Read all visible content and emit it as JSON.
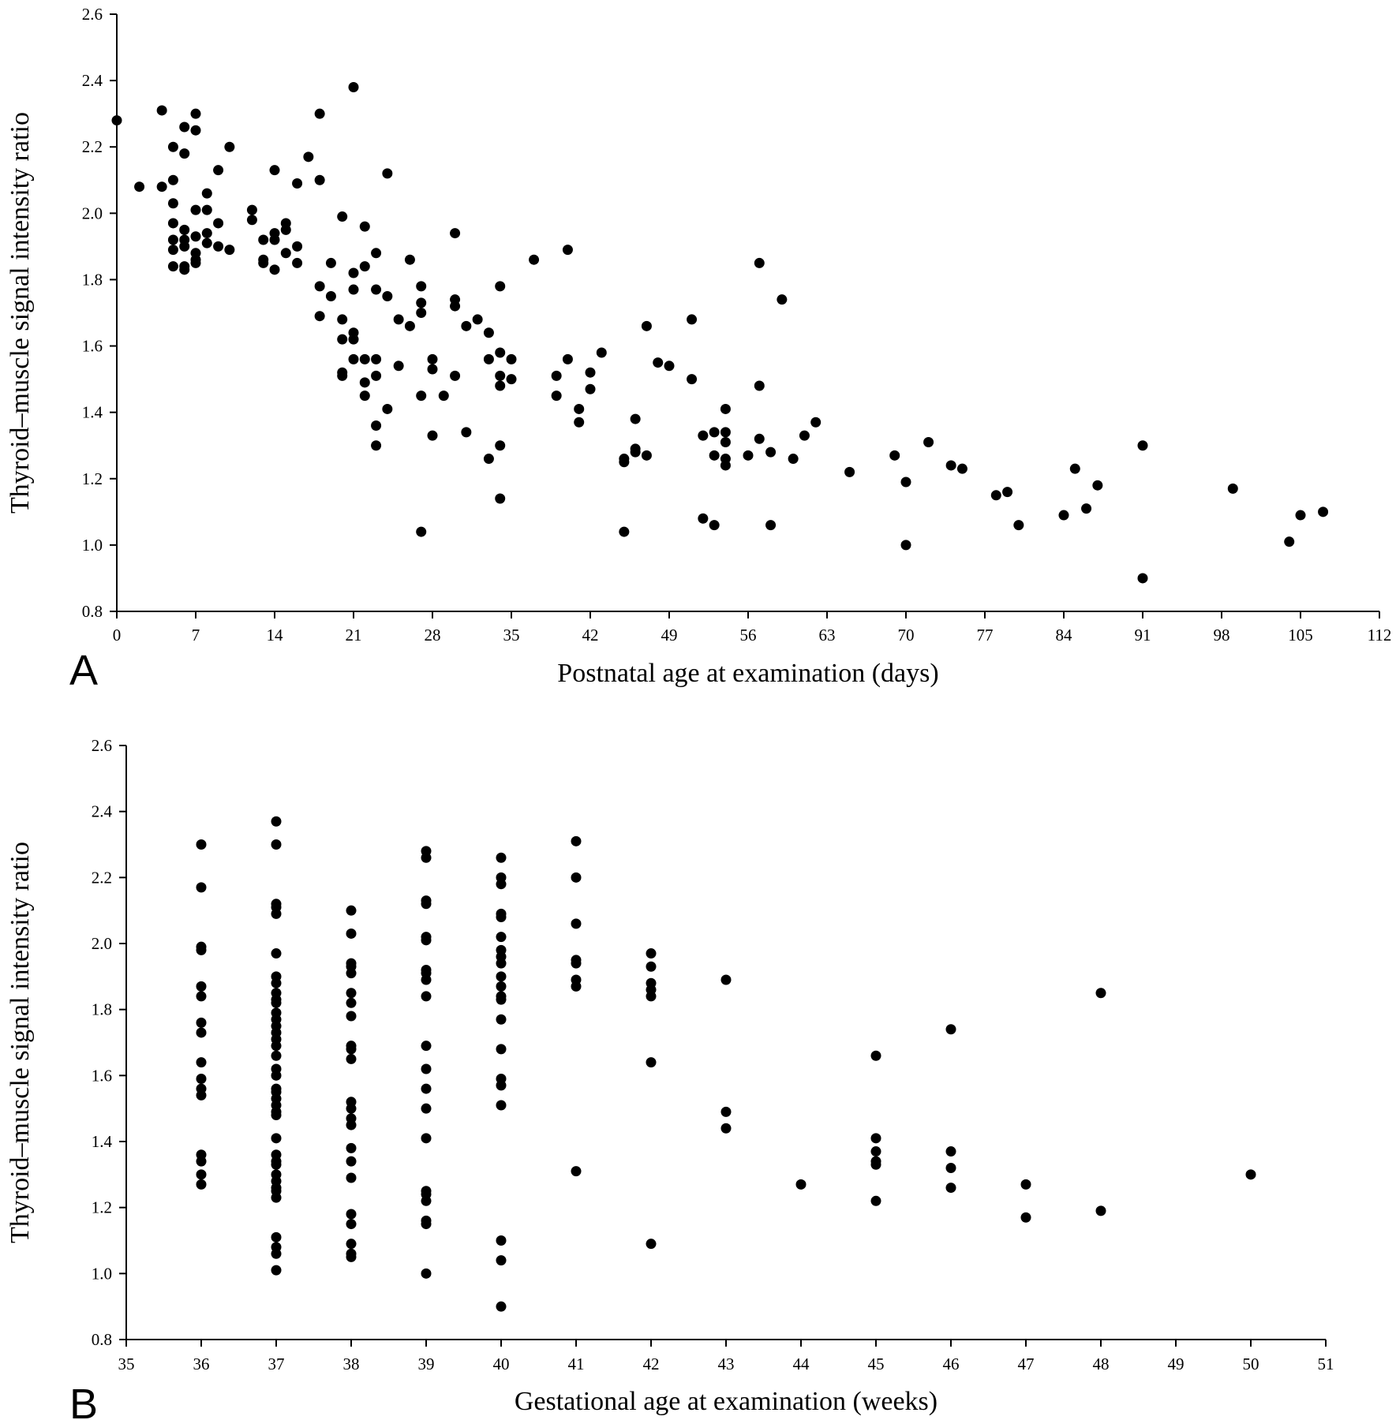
{
  "chart_data": [
    {
      "type": "scatter",
      "panel_label": "A",
      "xlabel": "Postnatal age at examination (days)",
      "ylabel": "Thyroid–muscle signal intensity ratio",
      "xlim": [
        0,
        112
      ],
      "ylim": [
        0.8,
        2.6
      ],
      "x_ticks": [
        0,
        7,
        14,
        21,
        28,
        35,
        42,
        49,
        56,
        63,
        70,
        77,
        84,
        91,
        98,
        105,
        112
      ],
      "y_ticks": [
        "0.8",
        "1.0",
        "1.2",
        "1.4",
        "1.6",
        "1.8",
        "2.0",
        "2.2",
        "2.4",
        "2.6"
      ],
      "grid": false,
      "points": [
        [
          0,
          2.28
        ],
        [
          2,
          2.08
        ],
        [
          4,
          2.31
        ],
        [
          4,
          2.08
        ],
        [
          5,
          2.2
        ],
        [
          5,
          2.1
        ],
        [
          5,
          2.03
        ],
        [
          5,
          1.97
        ],
        [
          5,
          1.92
        ],
        [
          5,
          1.89
        ],
        [
          5,
          1.84
        ],
        [
          6,
          2.26
        ],
        [
          6,
          2.18
        ],
        [
          6,
          1.95
        ],
        [
          6,
          1.92
        ],
        [
          6,
          1.9
        ],
        [
          6,
          1.84
        ],
        [
          6,
          1.83
        ],
        [
          7,
          2.3
        ],
        [
          7,
          2.25
        ],
        [
          7,
          2.01
        ],
        [
          7,
          1.93
        ],
        [
          7,
          1.88
        ],
        [
          7,
          1.86
        ],
        [
          7,
          1.85
        ],
        [
          8,
          2.06
        ],
        [
          8,
          2.01
        ],
        [
          8,
          1.94
        ],
        [
          8,
          1.91
        ],
        [
          9,
          2.13
        ],
        [
          9,
          1.97
        ],
        [
          9,
          1.9
        ],
        [
          10,
          2.2
        ],
        [
          10,
          1.89
        ],
        [
          12,
          2.01
        ],
        [
          12,
          1.98
        ],
        [
          13,
          1.92
        ],
        [
          13,
          1.86
        ],
        [
          13,
          1.85
        ],
        [
          14,
          2.13
        ],
        [
          14,
          1.94
        ],
        [
          14,
          1.92
        ],
        [
          14,
          1.83
        ],
        [
          15,
          1.97
        ],
        [
          15,
          1.95
        ],
        [
          15,
          1.88
        ],
        [
          16,
          2.09
        ],
        [
          16,
          1.9
        ],
        [
          16,
          1.85
        ],
        [
          17,
          2.17
        ],
        [
          18,
          2.3
        ],
        [
          18,
          2.1
        ],
        [
          18,
          1.78
        ],
        [
          18,
          1.69
        ],
        [
          19,
          1.85
        ],
        [
          19,
          1.75
        ],
        [
          20,
          1.99
        ],
        [
          20,
          1.68
        ],
        [
          20,
          1.62
        ],
        [
          20,
          1.51
        ],
        [
          20,
          1.52
        ],
        [
          21,
          2.38
        ],
        [
          21,
          1.82
        ],
        [
          21,
          1.77
        ],
        [
          21,
          1.64
        ],
        [
          21,
          1.62
        ],
        [
          21,
          1.56
        ],
        [
          22,
          1.96
        ],
        [
          22,
          1.84
        ],
        [
          22,
          1.56
        ],
        [
          22,
          1.49
        ],
        [
          22,
          1.45
        ],
        [
          23,
          1.88
        ],
        [
          23,
          1.77
        ],
        [
          23,
          1.56
        ],
        [
          23,
          1.51
        ],
        [
          23,
          1.36
        ],
        [
          23,
          1.3
        ],
        [
          24,
          2.12
        ],
        [
          24,
          1.75
        ],
        [
          24,
          1.41
        ],
        [
          25,
          1.68
        ],
        [
          25,
          1.54
        ],
        [
          26,
          1.86
        ],
        [
          26,
          1.66
        ],
        [
          27,
          1.78
        ],
        [
          27,
          1.73
        ],
        [
          27,
          1.7
        ],
        [
          27,
          1.45
        ],
        [
          27,
          1.04
        ],
        [
          28,
          1.56
        ],
        [
          28,
          1.53
        ],
        [
          28,
          1.33
        ],
        [
          29,
          1.45
        ],
        [
          30,
          1.94
        ],
        [
          30,
          1.74
        ],
        [
          30,
          1.72
        ],
        [
          30,
          1.51
        ],
        [
          31,
          1.66
        ],
        [
          31,
          1.34
        ],
        [
          32,
          1.68
        ],
        [
          33,
          1.64
        ],
        [
          33,
          1.56
        ],
        [
          33,
          1.26
        ],
        [
          34,
          1.78
        ],
        [
          34,
          1.58
        ],
        [
          34,
          1.51
        ],
        [
          34,
          1.48
        ],
        [
          34,
          1.3
        ],
        [
          34,
          1.14
        ],
        [
          35,
          1.56
        ],
        [
          35,
          1.5
        ],
        [
          37,
          1.86
        ],
        [
          39,
          1.51
        ],
        [
          39,
          1.45
        ],
        [
          40,
          1.89
        ],
        [
          40,
          1.56
        ],
        [
          41,
          1.41
        ],
        [
          41,
          1.37
        ],
        [
          42,
          1.52
        ],
        [
          42,
          1.47
        ],
        [
          43,
          1.58
        ],
        [
          45,
          1.26
        ],
        [
          45,
          1.25
        ],
        [
          45,
          1.04
        ],
        [
          46,
          1.38
        ],
        [
          46,
          1.29
        ],
        [
          46,
          1.28
        ],
        [
          47,
          1.66
        ],
        [
          47,
          1.27
        ],
        [
          48,
          1.55
        ],
        [
          49,
          1.54
        ],
        [
          51,
          1.68
        ],
        [
          51,
          1.5
        ],
        [
          52,
          1.33
        ],
        [
          52,
          1.08
        ],
        [
          53,
          1.34
        ],
        [
          53,
          1.27
        ],
        [
          53,
          1.06
        ],
        [
          54,
          1.41
        ],
        [
          54,
          1.34
        ],
        [
          54,
          1.31
        ],
        [
          54,
          1.26
        ],
        [
          54,
          1.24
        ],
        [
          56,
          1.27
        ],
        [
          57,
          1.85
        ],
        [
          57,
          1.48
        ],
        [
          57,
          1.32
        ],
        [
          58,
          1.28
        ],
        [
          58,
          1.06
        ],
        [
          59,
          1.74
        ],
        [
          60,
          1.26
        ],
        [
          61,
          1.33
        ],
        [
          62,
          1.37
        ],
        [
          65,
          1.22
        ],
        [
          69,
          1.27
        ],
        [
          70,
          1.19
        ],
        [
          70,
          1.0
        ],
        [
          72,
          1.31
        ],
        [
          74,
          1.24
        ],
        [
          75,
          1.23
        ],
        [
          78,
          1.15
        ],
        [
          79,
          1.16
        ],
        [
          80,
          1.06
        ],
        [
          84,
          1.09
        ],
        [
          85,
          1.23
        ],
        [
          86,
          1.11
        ],
        [
          87,
          1.18
        ],
        [
          91,
          1.3
        ],
        [
          91,
          0.9
        ],
        [
          99,
          1.17
        ],
        [
          104,
          1.01
        ],
        [
          105,
          1.09
        ],
        [
          107,
          1.1
        ]
      ]
    },
    {
      "type": "scatter",
      "panel_label": "B",
      "xlabel": "Gestational age at examination (weeks)",
      "ylabel": "Thyroid–muscle signal intensity ratio",
      "xlim": [
        35,
        51
      ],
      "ylim": [
        0.8,
        2.6
      ],
      "x_ticks": [
        35,
        36,
        37,
        38,
        39,
        40,
        41,
        42,
        43,
        44,
        45,
        46,
        47,
        48,
        49,
        50,
        51
      ],
      "y_ticks": [
        "0.8",
        "1.0",
        "1.2",
        "1.4",
        "1.6",
        "1.8",
        "2.0",
        "2.2",
        "2.4",
        "2.6"
      ],
      "grid": false,
      "points": [
        [
          36,
          2.3
        ],
        [
          36,
          2.17
        ],
        [
          36,
          1.99
        ],
        [
          36,
          1.98
        ],
        [
          36,
          1.87
        ],
        [
          36,
          1.84
        ],
        [
          36,
          1.76
        ],
        [
          36,
          1.73
        ],
        [
          36,
          1.64
        ],
        [
          36,
          1.59
        ],
        [
          36,
          1.56
        ],
        [
          36,
          1.54
        ],
        [
          36,
          1.36
        ],
        [
          36,
          1.34
        ],
        [
          36,
          1.3
        ],
        [
          36,
          1.27
        ],
        [
          37,
          2.37
        ],
        [
          37,
          2.3
        ],
        [
          37,
          2.12
        ],
        [
          37,
          2.11
        ],
        [
          37,
          2.09
        ],
        [
          37,
          1.97
        ],
        [
          37,
          1.9
        ],
        [
          37,
          1.88
        ],
        [
          37,
          1.85
        ],
        [
          37,
          1.83
        ],
        [
          37,
          1.82
        ],
        [
          37,
          1.79
        ],
        [
          37,
          1.77
        ],
        [
          37,
          1.75
        ],
        [
          37,
          1.73
        ],
        [
          37,
          1.71
        ],
        [
          37,
          1.69
        ],
        [
          37,
          1.66
        ],
        [
          37,
          1.62
        ],
        [
          37,
          1.6
        ],
        [
          37,
          1.56
        ],
        [
          37,
          1.55
        ],
        [
          37,
          1.53
        ],
        [
          37,
          1.51
        ],
        [
          37,
          1.49
        ],
        [
          37,
          1.48
        ],
        [
          37,
          1.41
        ],
        [
          37,
          1.36
        ],
        [
          37,
          1.34
        ],
        [
          37,
          1.33
        ],
        [
          37,
          1.3
        ],
        [
          37,
          1.28
        ],
        [
          37,
          1.26
        ],
        [
          37,
          1.25
        ],
        [
          37,
          1.23
        ],
        [
          37,
          1.11
        ],
        [
          37,
          1.08
        ],
        [
          37,
          1.06
        ],
        [
          37,
          1.01
        ],
        [
          38,
          2.1
        ],
        [
          38,
          2.03
        ],
        [
          38,
          1.94
        ],
        [
          38,
          1.93
        ],
        [
          38,
          1.91
        ],
        [
          38,
          1.85
        ],
        [
          38,
          1.82
        ],
        [
          38,
          1.78
        ],
        [
          38,
          1.69
        ],
        [
          38,
          1.68
        ],
        [
          38,
          1.65
        ],
        [
          38,
          1.52
        ],
        [
          38,
          1.5
        ],
        [
          38,
          1.47
        ],
        [
          38,
          1.45
        ],
        [
          38,
          1.38
        ],
        [
          38,
          1.34
        ],
        [
          38,
          1.29
        ],
        [
          38,
          1.18
        ],
        [
          38,
          1.15
        ],
        [
          38,
          1.09
        ],
        [
          38,
          1.06
        ],
        [
          38,
          1.05
        ],
        [
          39,
          2.28
        ],
        [
          39,
          2.26
        ],
        [
          39,
          2.13
        ],
        [
          39,
          2.12
        ],
        [
          39,
          2.02
        ],
        [
          39,
          2.01
        ],
        [
          39,
          1.92
        ],
        [
          39,
          1.91
        ],
        [
          39,
          1.89
        ],
        [
          39,
          1.84
        ],
        [
          39,
          1.69
        ],
        [
          39,
          1.62
        ],
        [
          39,
          1.56
        ],
        [
          39,
          1.5
        ],
        [
          39,
          1.41
        ],
        [
          39,
          1.25
        ],
        [
          39,
          1.24
        ],
        [
          39,
          1.22
        ],
        [
          39,
          1.16
        ],
        [
          39,
          1.15
        ],
        [
          39,
          1.0
        ],
        [
          40,
          2.26
        ],
        [
          40,
          2.2
        ],
        [
          40,
          2.18
        ],
        [
          40,
          2.09
        ],
        [
          40,
          2.08
        ],
        [
          40,
          2.02
        ],
        [
          40,
          1.98
        ],
        [
          40,
          1.96
        ],
        [
          40,
          1.94
        ],
        [
          40,
          1.9
        ],
        [
          40,
          1.87
        ],
        [
          40,
          1.84
        ],
        [
          40,
          1.83
        ],
        [
          40,
          1.77
        ],
        [
          40,
          1.68
        ],
        [
          40,
          1.59
        ],
        [
          40,
          1.57
        ],
        [
          40,
          1.51
        ],
        [
          40,
          1.1
        ],
        [
          40,
          1.04
        ],
        [
          40,
          0.9
        ],
        [
          41,
          2.31
        ],
        [
          41,
          2.2
        ],
        [
          41,
          2.06
        ],
        [
          41,
          1.95
        ],
        [
          41,
          1.94
        ],
        [
          41,
          1.89
        ],
        [
          41,
          1.87
        ],
        [
          41,
          1.31
        ],
        [
          42,
          1.97
        ],
        [
          42,
          1.93
        ],
        [
          42,
          1.88
        ],
        [
          42,
          1.86
        ],
        [
          42,
          1.84
        ],
        [
          42,
          1.64
        ],
        [
          42,
          1.09
        ],
        [
          43,
          1.89
        ],
        [
          43,
          1.49
        ],
        [
          43,
          1.44
        ],
        [
          44,
          1.27
        ],
        [
          45,
          1.66
        ],
        [
          45,
          1.41
        ],
        [
          45,
          1.37
        ],
        [
          45,
          1.34
        ],
        [
          45,
          1.33
        ],
        [
          45,
          1.22
        ],
        [
          46,
          1.74
        ],
        [
          46,
          1.37
        ],
        [
          46,
          1.32
        ],
        [
          46,
          1.26
        ],
        [
          47,
          1.27
        ],
        [
          47,
          1.17
        ],
        [
          48,
          1.85
        ],
        [
          48,
          1.19
        ],
        [
          50,
          1.3
        ]
      ]
    }
  ]
}
